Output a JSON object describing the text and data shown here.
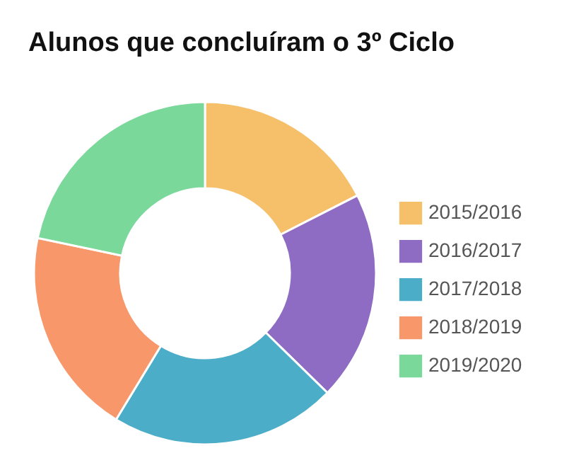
{
  "chart_data": {
    "type": "donut",
    "title": "Alunos que concluíram o 3º Ciclo",
    "categories": [
      "2015/2016",
      "2016/2017",
      "2017/2018",
      "2018/2019",
      "2019/2020"
    ],
    "values": [
      17.5,
      19.8,
      21.4,
      19.6,
      21.7
    ],
    "colors": [
      "#f6bf6a",
      "#8e6cc4",
      "#4badc8",
      "#f7976a",
      "#79d89a"
    ],
    "legend": "right"
  }
}
